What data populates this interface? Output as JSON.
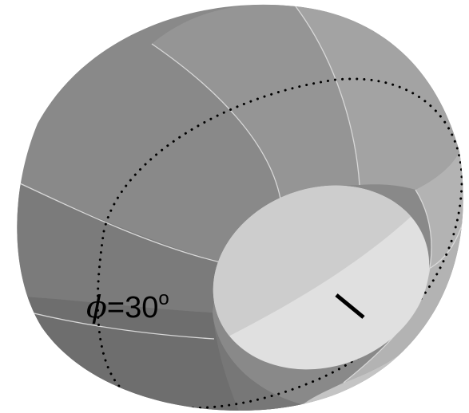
{
  "annotation": {
    "symbol": "ϕ",
    "equals_value": "=30",
    "superscript": "o"
  },
  "colors": {
    "background": "#ffffff",
    "shell_darkest": "#6f6f6f",
    "shell_dark": "#7c7c7c",
    "shell_mid": "#898989",
    "shell_light": "#989898",
    "shell_lighter": "#a6a6a6",
    "shell_rim": "#b9b9b9",
    "cap_top": "#cdcdcd",
    "cap_bottom": "#e0e0e0",
    "meridian_line": "#d8d8d8",
    "dotted_circle": "#000000",
    "tick": "#000000"
  }
}
